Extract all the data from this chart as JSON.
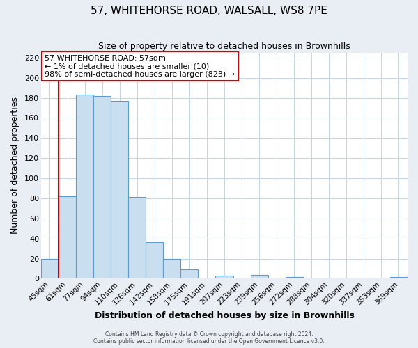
{
  "title": "57, WHITEHORSE ROAD, WALSALL, WS8 7PE",
  "subtitle": "Size of property relative to detached houses in Brownhills",
  "xlabel": "Distribution of detached houses by size in Brownhills",
  "ylabel": "Number of detached properties",
  "bar_labels": [
    "45sqm",
    "61sqm",
    "77sqm",
    "94sqm",
    "110sqm",
    "126sqm",
    "142sqm",
    "158sqm",
    "175sqm",
    "191sqm",
    "207sqm",
    "223sqm",
    "239sqm",
    "256sqm",
    "272sqm",
    "288sqm",
    "304sqm",
    "320sqm",
    "337sqm",
    "353sqm",
    "369sqm"
  ],
  "bar_values": [
    20,
    82,
    183,
    182,
    177,
    81,
    36,
    20,
    9,
    0,
    3,
    0,
    4,
    0,
    2,
    0,
    0,
    0,
    0,
    0,
    2
  ],
  "bar_color": "#c9dff0",
  "bar_edge_color": "#5b9bd5",
  "marker_color": "#cc0000",
  "ylim": [
    0,
    225
  ],
  "yticks": [
    0,
    20,
    40,
    60,
    80,
    100,
    120,
    140,
    160,
    180,
    200,
    220
  ],
  "annotation_title": "57 WHITEHORSE ROAD: 57sqm",
  "annotation_line2": "← 1% of detached houses are smaller (10)",
  "annotation_line3": "98% of semi-detached houses are larger (823) →",
  "annotation_box_color": "#ffffff",
  "annotation_border_color": "#cc0000",
  "footer_line1": "Contains HM Land Registry data © Crown copyright and database right 2024.",
  "footer_line2": "Contains public sector information licensed under the Open Government Licence v3.0.",
  "background_color": "#e8eef4",
  "plot_bg_color": "#ffffff",
  "grid_color": "#c5d5e5"
}
